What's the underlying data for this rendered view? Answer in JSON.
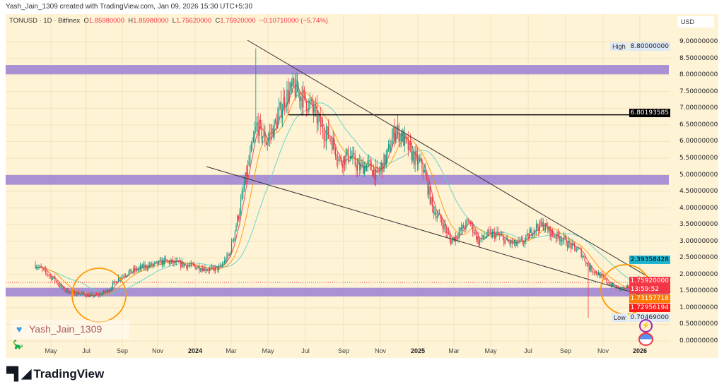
{
  "caption": "Yash_Jain_1309 created with TradingView.com, Jan 09, 2026 15:30 UTC+5:30",
  "legend": {
    "symbol": "TONUSD · 1D · Bitfinex",
    "o_label": "O",
    "o": "1.85980000",
    "h_label": "H",
    "h": "1.85980000",
    "l_label": "L",
    "l": "1.75620000",
    "c_label": "C",
    "c": "1.75920000",
    "change": "−0.10710000 (−5.74%)"
  },
  "currency": "USD",
  "price_axis": [
    "9.00000000",
    "8.50000000",
    "8.00000000",
    "7.50000000",
    "7.00000000",
    "6.50000000",
    "6.00000000",
    "5.50000000",
    "5.00000000",
    "4.50000000",
    "4.00000000",
    "3.50000000",
    "3.00000000",
    "2.50000000",
    "2.00000000",
    "1.50000000",
    "1.00000000",
    "0.50000000",
    "0.00000000"
  ],
  "markers": {
    "high_label": "High",
    "high": "8.80000000",
    "low_label": "Low",
    "low": "0.70469000",
    "hline": "6.80193585",
    "ma_long": "2.39358428",
    "last": "1.75920000",
    "countdown": "13:59:52",
    "ma_mid": "1.73157718",
    "ma_short": "1.72956194"
  },
  "time_axis": [
    {
      "t": "May",
      "b": false
    },
    {
      "t": "Jul",
      "b": false
    },
    {
      "t": "Sep",
      "b": false
    },
    {
      "t": "Nov",
      "b": false
    },
    {
      "t": "2024",
      "b": true
    },
    {
      "t": "Mar",
      "b": false
    },
    {
      "t": "May",
      "b": false
    },
    {
      "t": "Jul",
      "b": false
    },
    {
      "t": "Sep",
      "b": false
    },
    {
      "t": "Nov",
      "b": false
    },
    {
      "t": "2025",
      "b": true
    },
    {
      "t": "Mar",
      "b": false
    },
    {
      "t": "May",
      "b": false
    },
    {
      "t": "Jul",
      "b": false
    },
    {
      "t": "Sep",
      "b": false
    },
    {
      "t": "Nov",
      "b": false
    },
    {
      "t": "2026",
      "b": true
    }
  ],
  "watermark": "Yash_Jain_1309",
  "brand": "TradingView",
  "colors": {
    "background": "#fff3d6",
    "up": "#089981",
    "down": "#f23645",
    "zone": "#9b7fd4",
    "ma_short": "#f23645",
    "ma_mid": "#ff9800",
    "ma_long": "#5fd3c9",
    "circle": "#ff9800"
  },
  "chart_data": {
    "type": "candlestick",
    "ylim": [
      0,
      9
    ],
    "zones": [
      [
        8.02,
        8.3
      ],
      [
        4.7,
        4.99
      ],
      [
        1.34,
        1.6
      ]
    ],
    "horizontal_line": 6.80193585,
    "closes_half_monthly_from_2023_04": [
      2.3,
      2.08,
      1.87,
      1.55,
      1.45,
      1.42,
      1.35,
      1.4,
      1.55,
      1.9,
      2.05,
      2.15,
      2.25,
      2.3,
      2.4,
      2.35,
      2.3,
      2.25,
      2.2,
      2.15,
      2.2,
      2.6,
      3.8,
      5.2,
      6.5,
      6.0,
      6.5,
      7.3,
      7.6,
      7.3,
      7.0,
      6.4,
      6.1,
      5.4,
      5.6,
      5.2,
      5.3,
      5.0,
      5.5,
      6.4,
      6.0,
      5.5,
      5.2,
      4.0,
      3.6,
      3.0,
      3.3,
      3.6,
      3.0,
      3.2,
      3.2,
      3.0,
      2.9,
      3.0,
      3.4,
      3.5,
      3.2,
      3.1,
      2.85,
      2.7,
      2.2,
      2.0,
      1.75,
      1.6,
      1.55,
      1.85,
      1.76
    ]
  }
}
